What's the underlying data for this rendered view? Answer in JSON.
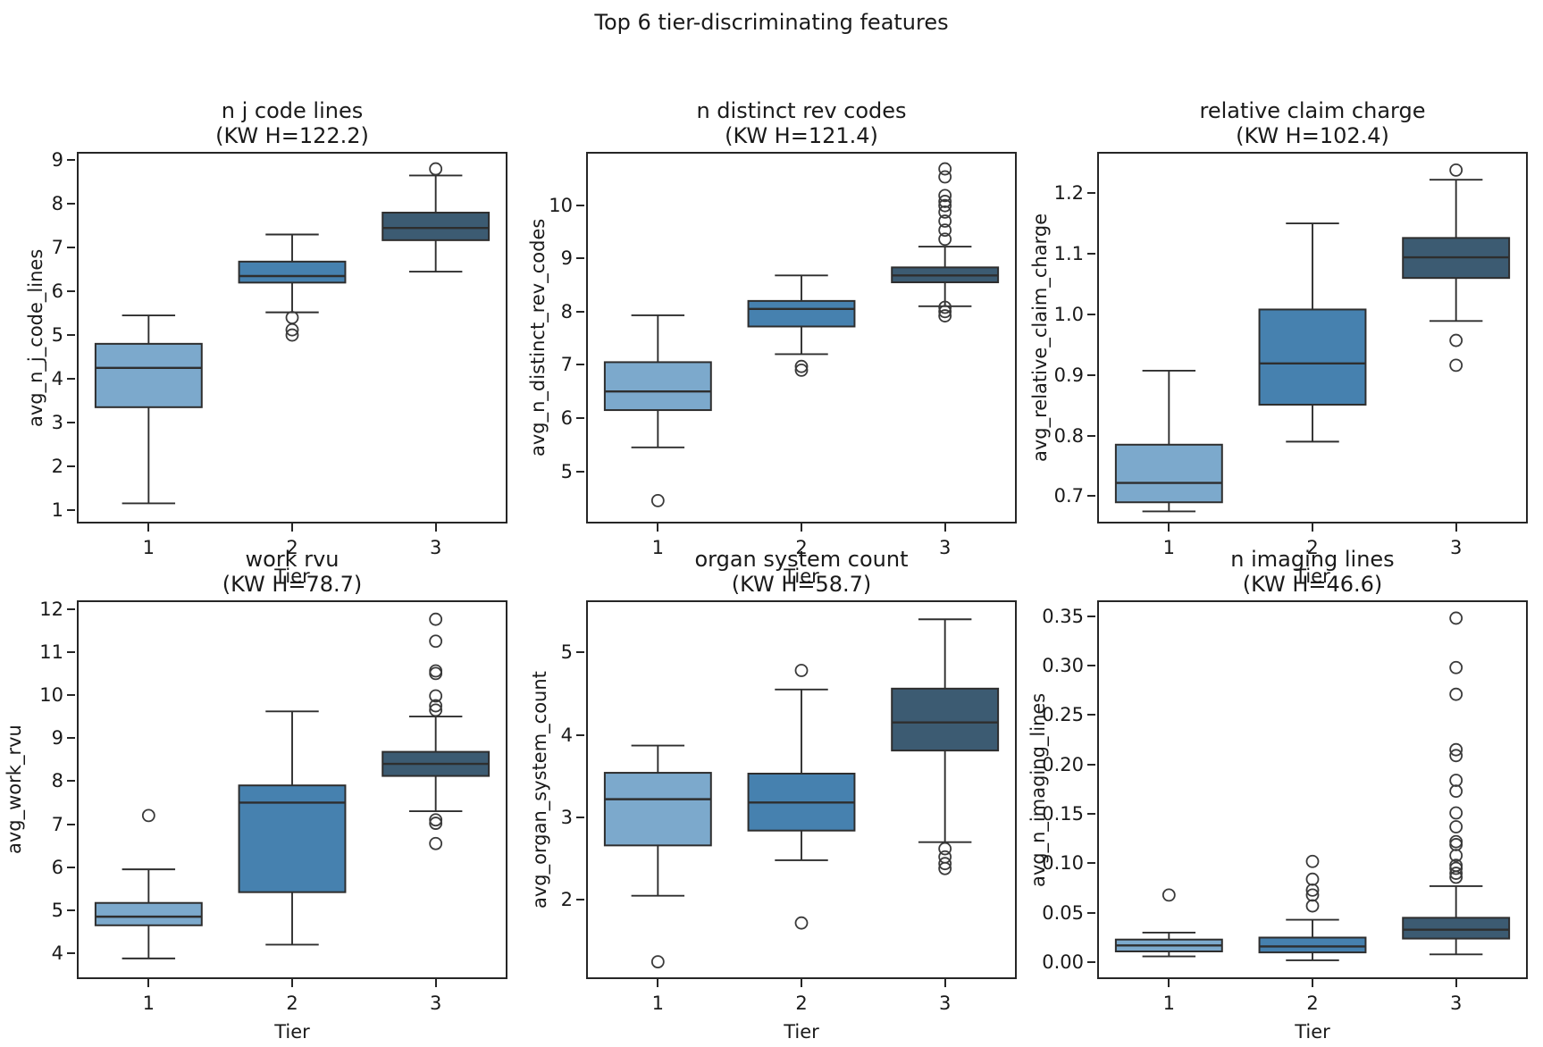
{
  "figure": {
    "title": "Top 6 tier-discriminating features",
    "tier_colors": [
      "#7CA9CC",
      "#4681AF",
      "#3C5B72"
    ],
    "edge_color": "#2E2E2E",
    "flier_color": "#3A3A3A"
  },
  "chart_data": [
    {
      "type": "box",
      "title": "n j code lines",
      "subtitle": "(KW H=122.2)",
      "kw_h": 122.2,
      "ylabel": "avg_n_j_code_lines",
      "xlabel": "Tier",
      "categories": [
        "1",
        "2",
        "3"
      ],
      "ytick_values": [
        1,
        2,
        3,
        4,
        5,
        6,
        7,
        8,
        9
      ],
      "ytick_labels": [
        "1",
        "2",
        "3",
        "4",
        "5",
        "6",
        "7",
        "8",
        "9"
      ],
      "ylim": [
        0.69,
        9.19
      ],
      "boxes": [
        {
          "tier": "1",
          "whislo": 1.15,
          "q1": 3.35,
          "med": 4.25,
          "q3": 4.8,
          "whishi": 5.45,
          "fliers": []
        },
        {
          "tier": "2",
          "whislo": 5.52,
          "q1": 6.2,
          "med": 6.35,
          "q3": 6.68,
          "whishi": 7.3,
          "fliers": [
            5.4,
            5.12,
            5.0
          ]
        },
        {
          "tier": "3",
          "whislo": 6.45,
          "q1": 7.17,
          "med": 7.45,
          "q3": 7.8,
          "whishi": 8.65,
          "fliers": [
            8.8
          ]
        }
      ]
    },
    {
      "type": "box",
      "title": "n distinct rev codes",
      "subtitle": "(KW H=121.4)",
      "kw_h": 121.4,
      "ylabel": "avg_n_distinct_rev_codes",
      "xlabel": "Tier",
      "categories": [
        "1",
        "2",
        "3"
      ],
      "ytick_values": [
        5,
        6,
        7,
        8,
        9,
        10
      ],
      "ytick_labels": [
        "5",
        "6",
        "7",
        "8",
        "9",
        "10"
      ],
      "ylim": [
        4.02,
        11.0
      ],
      "boxes": [
        {
          "tier": "1",
          "whislo": 5.45,
          "q1": 6.15,
          "med": 6.5,
          "q3": 7.05,
          "whishi": 7.93,
          "fliers": [
            4.45
          ]
        },
        {
          "tier": "2",
          "whislo": 7.2,
          "q1": 7.72,
          "med": 8.05,
          "q3": 8.2,
          "whishi": 8.68,
          "fliers": [
            6.97,
            6.9
          ]
        },
        {
          "tier": "3",
          "whislo": 8.1,
          "q1": 8.55,
          "med": 8.68,
          "q3": 8.83,
          "whishi": 9.22,
          "fliers": [
            10.68,
            10.53,
            10.18,
            10.07,
            9.99,
            9.87,
            9.7,
            9.53,
            9.36,
            8.08,
            8.0,
            7.92
          ]
        }
      ]
    },
    {
      "type": "box",
      "title": "relative claim charge",
      "subtitle": "(KW H=102.4)",
      "kw_h": 102.4,
      "ylabel": "avg_relative_claim_charge",
      "xlabel": "Tier",
      "categories": [
        "1",
        "2",
        "3"
      ],
      "ytick_values": [
        0.7,
        0.8,
        0.9,
        1.0,
        1.1,
        1.2
      ],
      "ytick_labels": [
        "0.7",
        "0.8",
        "0.9",
        "1.0",
        "1.1",
        "1.2"
      ],
      "ylim": [
        0.655,
        1.268
      ],
      "boxes": [
        {
          "tier": "1",
          "whislo": 0.675,
          "q1": 0.69,
          "med": 0.722,
          "q3": 0.785,
          "whishi": 0.907,
          "fliers": []
        },
        {
          "tier": "2",
          "whislo": 0.79,
          "q1": 0.851,
          "med": 0.919,
          "q3": 1.008,
          "whishi": 1.15,
          "fliers": []
        },
        {
          "tier": "3",
          "whislo": 0.989,
          "q1": 1.06,
          "med": 1.094,
          "q3": 1.126,
          "whishi": 1.222,
          "fliers": [
            1.238,
            0.957,
            0.916
          ]
        }
      ]
    },
    {
      "type": "box",
      "title": "work rvu",
      "subtitle": "(KW H=78.7)",
      "kw_h": 78.7,
      "ylabel": "avg_work_rvu",
      "xlabel": "Tier",
      "categories": [
        "1",
        "2",
        "3"
      ],
      "ytick_values": [
        4,
        5,
        6,
        7,
        8,
        9,
        10,
        11,
        12
      ],
      "ytick_labels": [
        "4",
        "5",
        "6",
        "7",
        "8",
        "9",
        "10",
        "11",
        "12"
      ],
      "ylim": [
        3.4,
        12.2
      ],
      "boxes": [
        {
          "tier": "1",
          "whislo": 3.88,
          "q1": 4.65,
          "med": 4.85,
          "q3": 5.17,
          "whishi": 5.95,
          "fliers": [
            7.2
          ]
        },
        {
          "tier": "2",
          "whislo": 4.2,
          "q1": 5.42,
          "med": 7.5,
          "q3": 7.9,
          "whishi": 9.62,
          "fliers": []
        },
        {
          "tier": "3",
          "whislo": 7.3,
          "q1": 8.12,
          "med": 8.4,
          "q3": 8.68,
          "whishi": 9.5,
          "fliers": [
            11.76,
            11.25,
            10.56,
            10.5,
            9.98,
            9.75,
            9.65,
            7.1,
            7.02,
            6.55
          ]
        }
      ]
    },
    {
      "type": "box",
      "title": "organ system count",
      "subtitle": "(KW H=58.7)",
      "kw_h": 58.7,
      "ylabel": "avg_organ_system_count",
      "xlabel": "Tier",
      "categories": [
        "1",
        "2",
        "3"
      ],
      "ytick_values": [
        2,
        3,
        4,
        5
      ],
      "ytick_labels": [
        "2",
        "3",
        "4",
        "5"
      ],
      "ylim": [
        1.04,
        5.63
      ],
      "boxes": [
        {
          "tier": "1",
          "whislo": 2.05,
          "q1": 2.66,
          "med": 3.22,
          "q3": 3.54,
          "whishi": 3.87,
          "fliers": [
            1.25
          ]
        },
        {
          "tier": "2",
          "whislo": 2.48,
          "q1": 2.84,
          "med": 3.18,
          "q3": 3.53,
          "whishi": 4.55,
          "fliers": [
            4.78,
            1.72
          ]
        },
        {
          "tier": "3",
          "whislo": 2.7,
          "q1": 3.81,
          "med": 4.15,
          "q3": 4.56,
          "whishi": 5.4,
          "fliers": [
            2.62,
            2.52,
            2.44,
            2.38
          ]
        }
      ]
    },
    {
      "type": "box",
      "title": "n imaging lines",
      "subtitle": "(KW H=46.6)",
      "kw_h": 46.6,
      "ylabel": "avg_n_imaging_lines",
      "xlabel": "Tier",
      "categories": [
        "1",
        "2",
        "3"
      ],
      "ytick_values": [
        0.0,
        0.05,
        0.1,
        0.15,
        0.2,
        0.25,
        0.3,
        0.35
      ],
      "ytick_labels": [
        "0.00",
        "0.05",
        "0.10",
        "0.15",
        "0.20",
        "0.25",
        "0.30",
        "0.35"
      ],
      "ylim": [
        -0.017,
        0.366
      ],
      "boxes": [
        {
          "tier": "1",
          "whislo": 0.006,
          "q1": 0.011,
          "med": 0.017,
          "q3": 0.023,
          "whishi": 0.03,
          "fliers": [
            0.068
          ]
        },
        {
          "tier": "2",
          "whislo": 0.002,
          "q1": 0.01,
          "med": 0.016,
          "q3": 0.025,
          "whishi": 0.043,
          "fliers": [
            0.102,
            0.084,
            0.073,
            0.068,
            0.057
          ]
        },
        {
          "tier": "3",
          "whislo": 0.008,
          "q1": 0.024,
          "med": 0.033,
          "q3": 0.045,
          "whishi": 0.077,
          "fliers": [
            0.348,
            0.298,
            0.271,
            0.215,
            0.209,
            0.184,
            0.173,
            0.151,
            0.137,
            0.122,
            0.119,
            0.108,
            0.098,
            0.095,
            0.09,
            0.086
          ]
        }
      ]
    }
  ]
}
